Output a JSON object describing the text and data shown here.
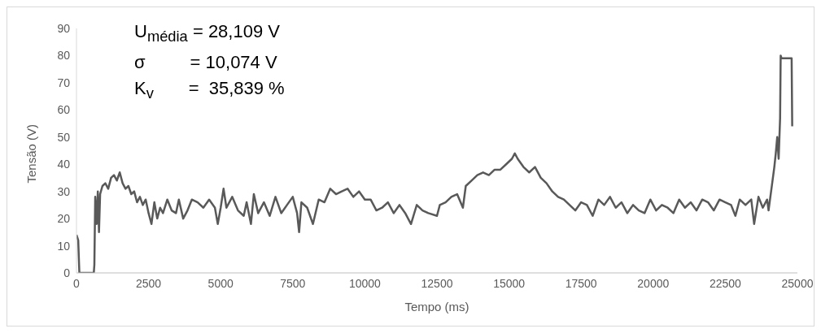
{
  "chart_data": {
    "type": "line",
    "xlabel": "Tempo (ms)",
    "ylabel": "Tensão (V)",
    "annotations": [
      "U$_{média}$ = 28,109 V",
      "σ         = 10,074 V",
      "K$_{v}$       =  35,839 %"
    ],
    "xlim": [
      0,
      25000
    ],
    "xticks": [
      0,
      2500,
      5000,
      7500,
      10000,
      12500,
      15000,
      17500,
      20000,
      22500,
      25000
    ],
    "ylim": [
      0,
      90
    ],
    "yticks": [
      0,
      10,
      20,
      30,
      40,
      50,
      60,
      70,
      80,
      90
    ],
    "grid": false,
    "legend": false,
    "marker": "none",
    "line_style": "solid",
    "series": [
      {
        "color": "#595959",
        "x": [
          0,
          60,
          100,
          600,
          620,
          650,
          700,
          740,
          780,
          820,
          900,
          1000,
          1100,
          1200,
          1300,
          1400,
          1500,
          1600,
          1700,
          1800,
          1900,
          2000,
          2100,
          2200,
          2300,
          2400,
          2500,
          2600,
          2700,
          2800,
          2900,
          3000,
          3150,
          3300,
          3450,
          3550,
          3700,
          3850,
          4000,
          4200,
          4400,
          4600,
          4800,
          4900,
          5000,
          5100,
          5200,
          5400,
          5600,
          5800,
          5900,
          6050,
          6150,
          6300,
          6500,
          6700,
          6900,
          7100,
          7300,
          7500,
          7650,
          7720,
          7800,
          8000,
          8200,
          8400,
          8600,
          8800,
          9000,
          9200,
          9400,
          9600,
          9800,
          10000,
          10200,
          10400,
          10600,
          10800,
          11000,
          11200,
          11400,
          11600,
          11800,
          12000,
          12200,
          12500,
          12600,
          12800,
          13000,
          13200,
          13400,
          13500,
          13700,
          13900,
          14100,
          14300,
          14500,
          14700,
          14900,
          15100,
          15200,
          15300,
          15500,
          15700,
          15900,
          16100,
          16300,
          16500,
          16700,
          16900,
          17100,
          17300,
          17500,
          17700,
          17900,
          18100,
          18300,
          18500,
          18700,
          18900,
          19100,
          19300,
          19500,
          19700,
          19900,
          20100,
          20300,
          20500,
          20700,
          20900,
          21100,
          21300,
          21500,
          21700,
          21900,
          22100,
          22300,
          22500,
          22700,
          22850,
          23000,
          23200,
          23400,
          23500,
          23650,
          23800,
          23950,
          24000,
          24100,
          24200,
          24250,
          24300,
          24350,
          24400,
          24420,
          24450,
          24800,
          24820
        ],
        "values": [
          14,
          12,
          0,
          0,
          3,
          28,
          18,
          30,
          15,
          29,
          32,
          33,
          31,
          35,
          36,
          34,
          37,
          33,
          31,
          32,
          29,
          30,
          26,
          28,
          25,
          27,
          22,
          18,
          26,
          20,
          24,
          22,
          27,
          23,
          22,
          27,
          20,
          23,
          27,
          26,
          24,
          27,
          24,
          18,
          24,
          31,
          24,
          28,
          23,
          21,
          26,
          18,
          29,
          22,
          26,
          21,
          28,
          22,
          25,
          28,
          22,
          15,
          26,
          24,
          18,
          27,
          26,
          31,
          29,
          30,
          31,
          28,
          30,
          27,
          27,
          23,
          24,
          26,
          22,
          25,
          22,
          18,
          25,
          23,
          22,
          21,
          25,
          26,
          28,
          29,
          24,
          32,
          34,
          36,
          37,
          36,
          38,
          38,
          40,
          42,
          44,
          42,
          39,
          37,
          39,
          35,
          33,
          30,
          28,
          27,
          25,
          23,
          26,
          25,
          21,
          27,
          25,
          28,
          24,
          26,
          22,
          25,
          23,
          22,
          27,
          23,
          25,
          24,
          22,
          27,
          24,
          26,
          23,
          27,
          26,
          23,
          27,
          26,
          25,
          21,
          27,
          25,
          27,
          18,
          28,
          24,
          27,
          23,
          31,
          39,
          44,
          50,
          42,
          57,
          80,
          79,
          79,
          54
        ]
      }
    ]
  }
}
